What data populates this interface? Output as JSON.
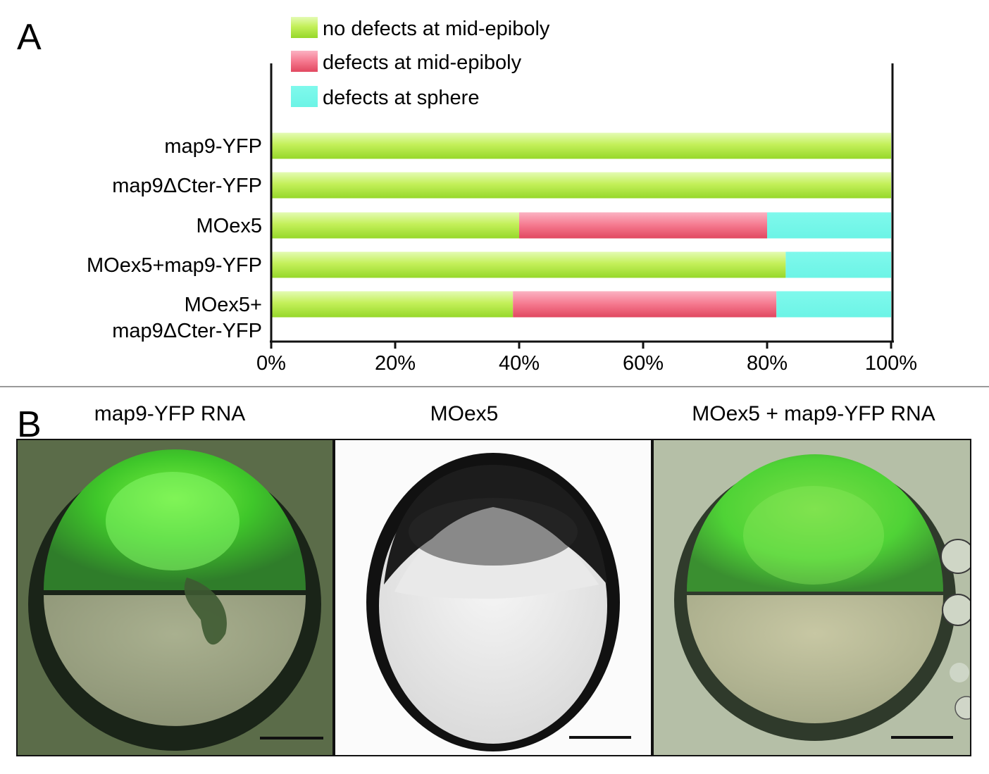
{
  "panels": {
    "a_letter": "A",
    "b_letter": "B"
  },
  "chart_data": {
    "type": "bar",
    "orientation": "horizontal",
    "stacked": true,
    "categories": [
      "map9-YFP",
      "map9ΔCter-YFP",
      "MOex5",
      "MOex5+map9-YFP",
      "MOex5+\nmap9ΔCter-YFP"
    ],
    "category_lines": [
      [
        "map9-YFP"
      ],
      [
        "map9ΔCter-YFP"
      ],
      [
        "MOex5"
      ],
      [
        "MOex5+map9-YFP"
      ],
      [
        "MOex5+",
        "map9ΔCter-YFP"
      ]
    ],
    "series": [
      {
        "name": "no defects at mid-epiboly",
        "color": "#b8ee4a",
        "values": [
          100,
          100,
          40,
          83,
          39
        ]
      },
      {
        "name": "defects at mid-epiboly",
        "color": "#f46a82",
        "values": [
          0,
          0,
          40,
          0,
          42.5
        ]
      },
      {
        "name": "defects at sphere",
        "color": "#76f8ea",
        "values": [
          0,
          0,
          20,
          17,
          18.5
        ]
      }
    ],
    "xlim": [
      0,
      100
    ],
    "xticks": [
      "0%",
      "20%",
      "40%",
      "60%",
      "80%",
      "100%"
    ],
    "legend_position": "top"
  },
  "panel_b": {
    "titles": [
      "map9-YFP RNA",
      "MOex5",
      "MOex5 + map9-YFP RNA"
    ]
  }
}
